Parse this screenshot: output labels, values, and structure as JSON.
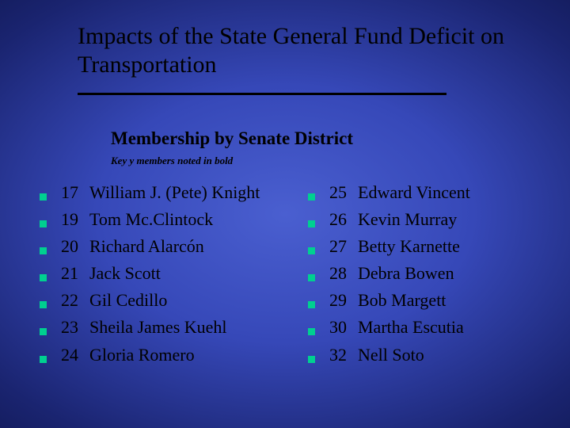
{
  "title": "Impacts of the State General Fund Deficit on Transportation",
  "subtitle": "Membership by Senate District",
  "note": "Key y members noted in bold",
  "bullet_color": "#00d090",
  "text_color": "#000000",
  "left_column": [
    {
      "district": "17",
      "name": "William J. (Pete) Knight"
    },
    {
      "district": "19",
      "name": "Tom Mc.Clintock"
    },
    {
      "district": "20",
      "name": "Richard Alarcón"
    },
    {
      "district": "21",
      "name": "Jack Scott"
    },
    {
      "district": "22",
      "name": "Gil Cedillo"
    },
    {
      "district": "23",
      "name": "Sheila James Kuehl"
    },
    {
      "district": "24",
      "name": "Gloria Romero"
    }
  ],
  "right_column": [
    {
      "district": "25",
      "name": "Edward Vincent"
    },
    {
      "district": "26",
      "name": "Kevin Murray"
    },
    {
      "district": "27",
      "name": "Betty Karnette"
    },
    {
      "district": "28",
      "name": "Debra Bowen"
    },
    {
      "district": "29",
      "name": "Bob Margett"
    },
    {
      "district": "30",
      "name": "Martha Escutia"
    },
    {
      "district": "32",
      "name": "Nell Soto"
    }
  ]
}
